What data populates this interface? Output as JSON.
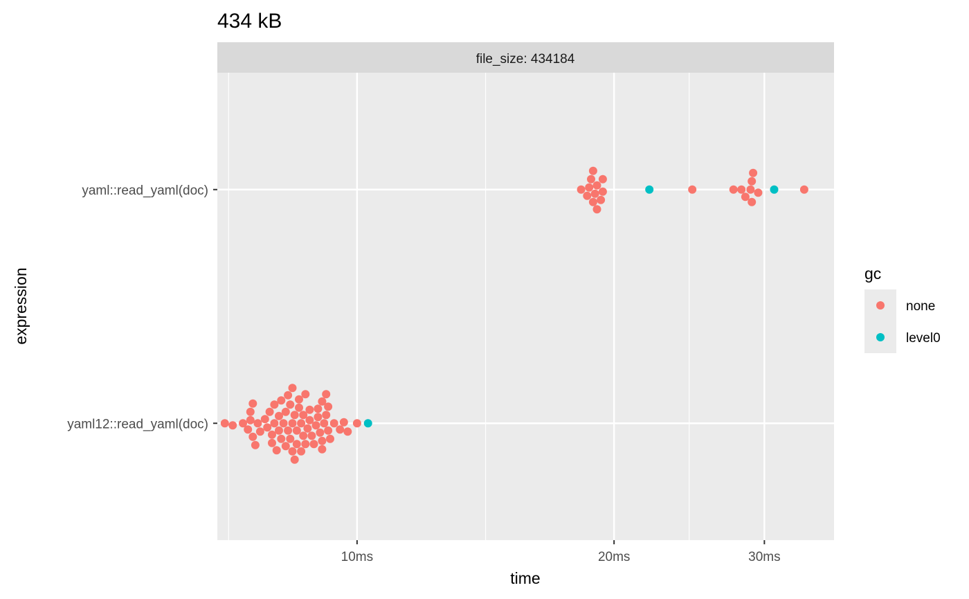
{
  "chart_data": {
    "type": "scatter",
    "title": "434 kB",
    "facet_label": "file_size: 434184",
    "xlabel": "time",
    "ylabel": "expression",
    "x_scale": "log10",
    "x_unit": "ms",
    "xlim": [
      6.86,
      36.2
    ],
    "x_ticks": [
      10,
      20,
      30
    ],
    "x_tick_labels": [
      "10ms",
      "20ms",
      "30ms"
    ],
    "categories": [
      "yaml12::read_yaml(doc)",
      "yaml::read_yaml(doc)"
    ],
    "grid": true,
    "legend": {
      "title": "gc",
      "position": "right",
      "entries": [
        {
          "name": "none",
          "color": "#F8766D"
        },
        {
          "name": "level0",
          "color": "#00BFC4"
        }
      ]
    },
    "series": [
      {
        "name": "none",
        "color": "#F8766D",
        "points": [
          {
            "category": "yaml12::read_yaml(doc)",
            "x": [
              7.0,
              7.15,
              7.35,
              7.5,
              7.55,
              7.6,
              7.65,
              7.7,
              7.8,
              7.85,
              7.9,
              7.95,
              7.95,
              8.0,
              8.05,
              8.1,
              8.1,
              8.15,
              8.15,
              8.2,
              8.25,
              8.25,
              8.3,
              8.3,
              8.35,
              8.35,
              8.4,
              8.4,
              8.4,
              8.45,
              8.5,
              8.5,
              8.55,
              8.55,
              8.6,
              8.6,
              8.65,
              8.65,
              8.7,
              8.7,
              8.75,
              8.8,
              8.8,
              8.85,
              8.9,
              8.95,
              9.0,
              9.0,
              9.05,
              9.1,
              9.1,
              9.1,
              9.15,
              9.2,
              9.2,
              9.25,
              9.25,
              9.3,
              9.4,
              9.55,
              9.65,
              9.75,
              7.45,
              7.5,
              7.55,
              8.0,
              8.45,
              10.0
            ]
          },
          {
            "category": "yaml::read_yaml(doc)",
            "x": [
              18.3,
              18.6,
              18.7,
              18.8,
              18.9,
              18.9,
              19.0,
              19.1,
              19.1,
              19.3,
              19.4,
              19.4,
              24.7,
              27.6,
              28.2,
              28.5,
              28.9,
              29.0,
              29.0,
              29.1,
              29.5,
              33.4
            ]
          }
        ]
      },
      {
        "name": "level0",
        "color": "#00BFC4",
        "points": [
          {
            "category": "yaml12::read_yaml(doc)",
            "x": [
              10.3
            ]
          },
          {
            "category": "yaml::read_yaml(doc)",
            "x": [
              22.0,
              30.8
            ]
          }
        ]
      }
    ]
  }
}
